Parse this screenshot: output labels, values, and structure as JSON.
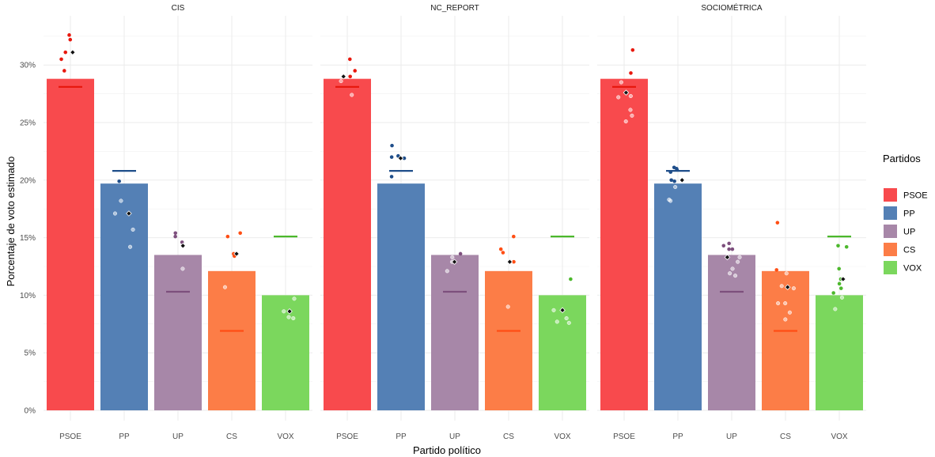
{
  "chart_data": {
    "type": "bar",
    "xlabel": "Partido político",
    "ylabel": "Porcentaje de voto estimado",
    "ylim": [
      0,
      33.8
    ],
    "y_ticks": [
      {
        "value": 0,
        "label": "0%"
      },
      {
        "value": 5,
        "label": "5%"
      },
      {
        "value": 10,
        "label": "10%"
      },
      {
        "value": 15,
        "label": "15%"
      },
      {
        "value": 20,
        "label": "20%"
      },
      {
        "value": 25,
        "label": "25%"
      },
      {
        "value": 30,
        "label": "30%"
      }
    ],
    "categories": [
      "PSOE",
      "PP",
      "UP",
      "CS",
      "VOX"
    ],
    "party_colors": {
      "PSOE": "#f84a4d",
      "PP": "#5480b5",
      "UP": "#a787a8",
      "CS": "#fc7d47",
      "VOX": "#7bd75d"
    },
    "line_colors": {
      "PSOE": "#e8180e",
      "PP": "#1f4e8a",
      "UP": "#7d4f7d",
      "CS": "#ff4e14",
      "VOX": "#4cb82c"
    },
    "legend": {
      "title": "Partidos",
      "entries": [
        "PSOE",
        "PP",
        "UP",
        "CS",
        "VOX"
      ]
    },
    "bar_values": {
      "PSOE": 28.8,
      "PP": 19.7,
      "UP": 13.5,
      "CS": 12.1,
      "VOX": 10.0
    },
    "reference_lines": {
      "PSOE": 28.1,
      "PP": 20.8,
      "UP": 10.3,
      "CS": 6.9,
      "VOX": 15.1
    },
    "panels": [
      {
        "strip": "CIS",
        "points": {
          "PSOE": [
            32.6,
            32.2,
            31.1,
            30.5,
            29.5
          ],
          "PP": [
            19.9,
            18.2,
            17.1,
            15.7,
            14.2
          ],
          "UP": [
            15.4,
            15.1,
            14.6,
            14.3,
            12.3
          ],
          "CS": [
            15.4,
            15.1,
            13.6,
            13.4,
            10.7
          ],
          "VOX": [
            9.7,
            8.6,
            8.1,
            8.0
          ]
        },
        "mean_points": {
          "PSOE": 31.1,
          "PP": 17.1,
          "UP": 14.3,
          "CS": 13.6,
          "VOX": 8.6
        }
      },
      {
        "strip": "NC_REPORT",
        "points": {
          "PSOE": [
            30.5,
            29.5,
            29.0,
            28.6,
            27.4
          ],
          "PP": [
            23.0,
            22.1,
            22.0,
            21.9,
            20.3
          ],
          "UP": [
            13.6,
            13.3,
            12.9,
            12.1
          ],
          "CS": [
            15.1,
            14.0,
            13.7,
            12.9,
            9.0
          ],
          "VOX": [
            11.4,
            8.7,
            8.0,
            7.7,
            7.6
          ]
        },
        "mean_points": {
          "PSOE": 29.0,
          "PP": 21.9,
          "UP": 12.9,
          "CS": 12.9,
          "VOX": 8.7
        }
      },
      {
        "strip": "SOCIOMÉTRICA",
        "points": {
          "PSOE": [
            31.3,
            29.3,
            28.5,
            27.6,
            27.3,
            27.2,
            26.1,
            25.6,
            25.1
          ],
          "PP": [
            21.1,
            21.0,
            20.9,
            20.7,
            20.0,
            19.9,
            19.4,
            18.3,
            18.2
          ],
          "UP": [
            14.5,
            14.3,
            14.0,
            14.0,
            13.3,
            12.9,
            12.3,
            11.9,
            11.7
          ],
          "CS": [
            16.3,
            12.2,
            11.9,
            10.8,
            10.6,
            9.3,
            9.3,
            8.5,
            7.9
          ],
          "VOX": [
            14.3,
            14.2,
            12.3,
            11.4,
            11.0,
            10.6,
            10.2,
            9.8,
            8.8
          ]
        },
        "mean_points": {
          "PSOE": 27.6,
          "PP": 20.0,
          "UP": 13.3,
          "CS": 10.7,
          "VOX": 11.4
        }
      }
    ]
  }
}
